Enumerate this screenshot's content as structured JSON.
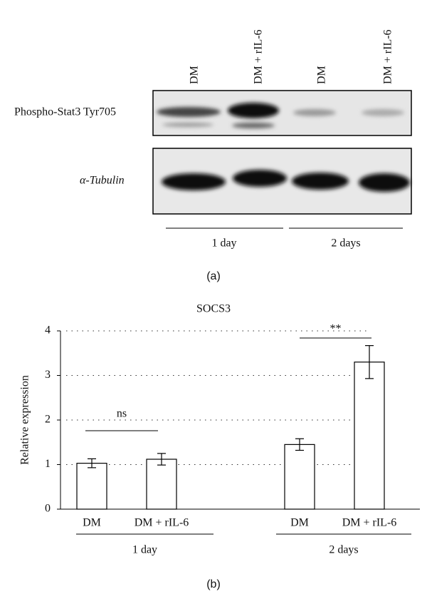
{
  "panel_a": {
    "label": "(a)",
    "lanes": [
      "DM",
      "DM + rIL-6",
      "DM",
      "DM + rIL-6"
    ],
    "rows": [
      "Phospho-Stat3 Tyr705",
      "α-Tubulin"
    ],
    "groups": [
      "1 day",
      "2 days"
    ]
  },
  "panel_b_label": "(b)",
  "chart_data": {
    "type": "bar",
    "title": "SOCS3",
    "y_label": "Relative expression",
    "categories": [
      "DM",
      "DM + rIL-6",
      "DM",
      "DM + rIL-6"
    ],
    "groups": [
      "1 day",
      "2 days"
    ],
    "values": [
      1.03,
      1.12,
      1.45,
      3.3
    ],
    "errors": [
      0.1,
      0.13,
      0.13,
      0.37
    ],
    "color": "#ffffff",
    "ylim": [
      0,
      4
    ],
    "yticks": [
      0,
      1,
      2,
      3,
      4
    ],
    "grid": true,
    "annotations": [
      "ns",
      "**"
    ]
  }
}
